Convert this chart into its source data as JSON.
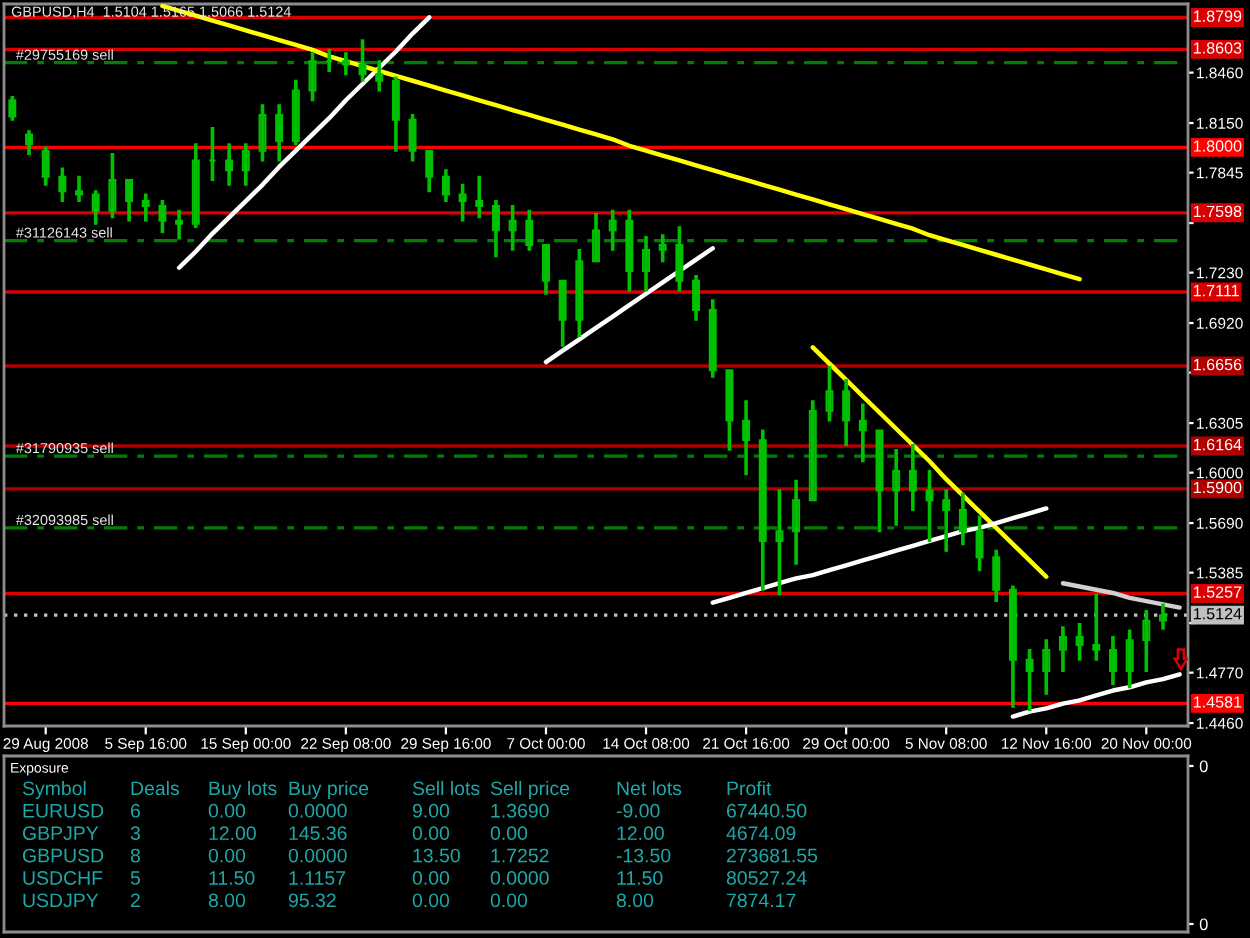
{
  "chart_data": [
    {
      "type": "candlestick",
      "title": "GBPUSD,H4  1.5104 1.5165 1.5066 1.5124",
      "color": "#00c000",
      "categories": [
        null,
        null,
        "29 Aug 2008",
        null,
        null,
        null,
        null,
        null,
        "5 Sep 16:00",
        null,
        null,
        null,
        null,
        null,
        "15 Sep 00:00",
        null,
        null,
        null,
        null,
        null,
        "22 Sep 08:00",
        null,
        null,
        null,
        null,
        null,
        "29 Sep 16:00",
        null,
        null,
        null,
        null,
        null,
        "7 Oct 00:00",
        null,
        null,
        null,
        null,
        null,
        "14 Oct 08:00",
        null,
        null,
        null,
        null,
        null,
        "21 Oct 16:00",
        null,
        null,
        null,
        null,
        null,
        "29 Oct 00:00",
        null,
        null,
        null,
        null,
        null,
        "5 Nov 08:00",
        null,
        null,
        null,
        null,
        null,
        "12 Nov 16:00",
        null,
        null,
        null,
        null,
        null,
        "20 Nov 00:00",
        null,
        null
      ],
      "ohlc": [
        [
          1.829,
          1.831,
          1.817,
          1.819
        ],
        [
          1.808,
          1.81,
          1.796,
          1.802
        ],
        [
          1.798,
          1.8,
          1.777,
          1.782
        ],
        [
          1.782,
          1.787,
          1.767,
          1.773
        ],
        [
          1.773,
          1.782,
          1.767,
          1.771
        ],
        [
          1.771,
          1.773,
          1.753,
          1.761
        ],
        [
          1.761,
          1.796,
          1.757,
          1.78
        ],
        [
          1.78,
          1.78,
          1.755,
          1.767
        ],
        [
          1.767,
          1.771,
          1.755,
          1.764
        ],
        [
          1.764,
          1.767,
          1.748,
          1.755
        ],
        [
          1.755,
          1.761,
          1.744,
          1.753
        ],
        [
          1.753,
          1.802,
          1.751,
          1.792
        ],
        [
          1.792,
          1.812,
          1.78,
          1.792
        ],
        [
          1.792,
          1.802,
          1.777,
          1.786
        ],
        [
          1.786,
          1.802,
          1.777,
          1.798
        ],
        [
          1.798,
          1.826,
          1.792,
          1.82
        ],
        [
          1.82,
          1.826,
          1.792,
          1.804
        ],
        [
          1.804,
          1.841,
          1.802,
          1.835
        ],
        [
          1.835,
          1.858,
          1.829,
          1.853
        ],
        [
          1.853,
          1.86,
          1.847,
          1.853
        ],
        [
          1.853,
          1.858,
          1.845,
          1.851
        ],
        [
          1.851,
          1.866,
          1.841,
          1.845
        ],
        [
          1.845,
          1.853,
          1.835,
          1.841
        ],
        [
          1.841,
          1.843,
          1.798,
          1.817
        ],
        [
          1.817,
          1.82,
          1.792,
          1.798
        ],
        [
          1.798,
          1.798,
          1.773,
          1.782
        ],
        [
          1.782,
          1.786,
          1.767,
          1.771
        ],
        [
          1.771,
          1.777,
          1.755,
          1.767
        ],
        [
          1.767,
          1.782,
          1.757,
          1.764
        ],
        [
          1.764,
          1.767,
          1.733,
          1.749
        ],
        [
          1.749,
          1.764,
          1.737,
          1.755
        ],
        [
          1.755,
          1.761,
          1.737,
          1.74
        ],
        [
          1.74,
          1.74,
          1.71,
          1.718
        ],
        [
          1.718,
          1.718,
          1.678,
          1.694
        ],
        [
          1.694,
          1.737,
          1.684,
          1.73
        ],
        [
          1.73,
          1.759,
          1.73,
          1.749
        ],
        [
          1.749,
          1.761,
          1.737,
          1.755
        ],
        [
          1.755,
          1.761,
          1.712,
          1.724
        ],
        [
          1.724,
          1.745,
          1.712,
          1.737
        ],
        [
          1.737,
          1.746,
          1.73,
          1.74
        ],
        [
          1.74,
          1.751,
          1.712,
          1.718
        ],
        [
          1.718,
          1.721,
          1.694,
          1.7
        ],
        [
          1.7,
          1.706,
          1.659,
          1.663
        ],
        [
          1.663,
          1.663,
          1.614,
          1.632
        ],
        [
          1.632,
          1.644,
          1.599,
          1.62
        ],
        [
          1.62,
          1.626,
          1.528,
          1.558
        ],
        [
          1.558,
          1.589,
          1.525,
          1.564
        ],
        [
          1.564,
          1.595,
          1.544,
          1.583
        ],
        [
          1.583,
          1.644,
          1.583,
          1.638
        ],
        [
          1.638,
          1.665,
          1.632,
          1.65
        ],
        [
          1.65,
          1.657,
          1.617,
          1.632
        ],
        [
          1.632,
          1.642,
          1.607,
          1.626
        ],
        [
          1.626,
          1.626,
          1.564,
          1.589
        ],
        [
          1.589,
          1.614,
          1.568,
          1.601
        ],
        [
          1.601,
          1.617,
          1.577,
          1.589
        ],
        [
          1.589,
          1.601,
          1.558,
          1.583
        ],
        [
          1.583,
          1.589,
          1.552,
          1.577
        ],
        [
          1.577,
          1.587,
          1.556,
          1.564
        ],
        [
          1.564,
          1.573,
          1.54,
          1.548
        ],
        [
          1.548,
          1.552,
          1.521,
          1.528
        ],
        [
          1.528,
          1.53,
          1.456,
          1.485
        ],
        [
          1.485,
          1.491,
          1.454,
          1.478
        ],
        [
          1.478,
          1.497,
          1.464,
          1.491
        ],
        [
          1.491,
          1.505,
          1.478,
          1.499
        ],
        [
          1.499,
          1.507,
          1.485,
          1.494
        ],
        [
          1.494,
          1.525,
          1.485,
          1.491
        ],
        [
          1.491,
          1.499,
          1.47,
          1.478
        ],
        [
          1.478,
          1.503,
          1.468,
          1.497
        ],
        [
          1.497,
          1.515,
          1.478,
          1.509
        ],
        [
          1.509,
          1.519,
          1.504,
          1.5124
        ],
        null
      ],
      "ylim": [
        1.4442,
        1.8882
      ],
      "yticks": [
        {
          "value": 1.846,
          "label": "1.8460"
        },
        {
          "value": 1.815,
          "label": "1.8150"
        },
        {
          "value": 1.7845,
          "label": "1.7845"
        },
        {
          "value": 1.7535,
          "label": null
        },
        {
          "value": 1.723,
          "label": "1.7230"
        },
        {
          "value": 1.692,
          "label": "1.6920"
        },
        {
          "value": 1.6615,
          "label": null
        },
        {
          "value": 1.6305,
          "label": "1.6305"
        },
        {
          "value": 1.6,
          "label": "1.6000"
        },
        {
          "value": 1.569,
          "label": "1.5690"
        },
        {
          "value": 1.5385,
          "label": "1.5385"
        },
        {
          "value": 1.5075,
          "label": null
        },
        {
          "value": 1.477,
          "label": "1.4770"
        },
        {
          "value": 1.446,
          "label": "1.4460"
        }
      ],
      "series": [
        {
          "type": "line",
          "color": "#ffffff",
          "values": [
            null,
            null,
            null,
            null,
            null,
            null,
            null,
            null,
            null,
            null,
            1.726,
            1.736,
            1.747,
            1.757,
            1.767,
            1.777,
            1.788,
            1.798,
            1.808,
            1.818,
            1.829,
            1.839,
            1.849,
            1.859,
            1.87,
            1.88,
            null,
            null,
            null,
            null,
            null,
            null,
            null,
            null,
            null,
            null,
            null,
            null,
            null,
            null,
            null,
            null,
            null,
            null,
            null,
            null,
            null,
            null,
            null,
            null,
            null,
            null,
            null,
            null,
            null,
            null,
            null,
            null,
            null,
            null,
            null,
            null,
            null,
            null,
            null,
            null,
            null,
            null,
            null,
            null,
            null
          ]
        },
        {
          "type": "line",
          "color": "#ffff00",
          "values": [
            null,
            null,
            null,
            null,
            null,
            null,
            null,
            null,
            null,
            1.887,
            1.884,
            1.881,
            1.878,
            1.875,
            1.872,
            1.869,
            1.866,
            1.863,
            1.86,
            1.856,
            1.853,
            1.85,
            1.847,
            1.844,
            1.841,
            1.838,
            1.835,
            1.832,
            1.829,
            1.826,
            1.823,
            1.82,
            1.817,
            1.814,
            1.811,
            1.808,
            1.805,
            1.801,
            1.798,
            1.795,
            1.792,
            1.789,
            1.786,
            1.783,
            1.78,
            1.777,
            1.774,
            1.771,
            1.768,
            1.765,
            1.762,
            1.759,
            1.756,
            1.753,
            1.75,
            1.746,
            1.743,
            1.74,
            1.737,
            1.734,
            1.731,
            1.728,
            1.725,
            1.722,
            1.719,
            null,
            null,
            null,
            null,
            null,
            null
          ]
        },
        {
          "type": "line",
          "color": "#ffffff",
          "values": [
            null,
            null,
            null,
            null,
            null,
            null,
            null,
            null,
            null,
            null,
            null,
            null,
            null,
            null,
            null,
            null,
            null,
            null,
            null,
            null,
            null,
            null,
            null,
            null,
            null,
            null,
            null,
            null,
            null,
            null,
            null,
            null,
            1.668,
            1.675,
            1.682,
            1.689,
            1.696,
            1.703,
            1.71,
            1.717,
            1.724,
            1.731,
            1.738,
            null,
            null,
            null,
            null,
            null,
            null,
            null,
            null,
            null,
            null,
            null,
            null,
            null,
            null,
            null,
            null,
            null,
            null,
            null,
            null,
            null,
            null,
            null,
            null,
            null,
            null,
            null,
            null
          ]
        },
        {
          "type": "line",
          "color": "#ffff00",
          "values": [
            null,
            null,
            null,
            null,
            null,
            null,
            null,
            null,
            null,
            null,
            null,
            null,
            null,
            null,
            null,
            null,
            null,
            null,
            null,
            null,
            null,
            null,
            null,
            null,
            null,
            null,
            null,
            null,
            null,
            null,
            null,
            null,
            null,
            null,
            null,
            null,
            null,
            null,
            null,
            null,
            null,
            null,
            null,
            null,
            null,
            null,
            null,
            null,
            1.677,
            1.667,
            1.657,
            1.647,
            1.637,
            1.627,
            1.617,
            1.607,
            1.596,
            1.586,
            1.576,
            1.566,
            1.556,
            1.546,
            1.536,
            null,
            null,
            null,
            null,
            null,
            null,
            null,
            null
          ]
        },
        {
          "type": "line",
          "color": "#ffffff",
          "values": [
            null,
            null,
            null,
            null,
            null,
            null,
            null,
            null,
            null,
            null,
            null,
            null,
            null,
            null,
            null,
            null,
            null,
            null,
            null,
            null,
            null,
            null,
            null,
            null,
            null,
            null,
            null,
            null,
            null,
            null,
            null,
            null,
            null,
            null,
            null,
            null,
            null,
            null,
            null,
            null,
            null,
            null,
            1.52,
            1.523,
            1.526,
            1.529,
            1.532,
            1.535,
            1.537,
            1.54,
            1.543,
            1.546,
            1.549,
            1.552,
            1.555,
            1.558,
            1.561,
            1.564,
            1.566,
            1.569,
            1.572,
            1.575,
            1.578,
            null,
            null,
            null,
            null,
            null,
            null,
            null,
            null
          ]
        },
        {
          "type": "line",
          "color": "#d0d0d0",
          "values": [
            null,
            null,
            null,
            null,
            null,
            null,
            null,
            null,
            null,
            null,
            null,
            null,
            null,
            null,
            null,
            null,
            null,
            null,
            null,
            null,
            null,
            null,
            null,
            null,
            null,
            null,
            null,
            null,
            null,
            null,
            null,
            null,
            null,
            null,
            null,
            null,
            null,
            null,
            null,
            null,
            null,
            null,
            null,
            null,
            null,
            null,
            null,
            null,
            null,
            null,
            null,
            null,
            null,
            null,
            null,
            null,
            null,
            null,
            null,
            null,
            null,
            null,
            null,
            1.532,
            1.53,
            1.528,
            1.526,
            1.523,
            1.521,
            1.519,
            1.517
          ]
        },
        {
          "type": "line",
          "color": "#ffffff",
          "values": [
            null,
            null,
            null,
            null,
            null,
            null,
            null,
            null,
            null,
            null,
            null,
            null,
            null,
            null,
            null,
            null,
            null,
            null,
            null,
            null,
            null,
            null,
            null,
            null,
            null,
            null,
            null,
            null,
            null,
            null,
            null,
            null,
            null,
            null,
            null,
            null,
            null,
            null,
            null,
            null,
            null,
            null,
            null,
            null,
            null,
            null,
            null,
            null,
            null,
            null,
            null,
            null,
            null,
            null,
            null,
            null,
            null,
            null,
            null,
            null,
            1.45,
            1.453,
            1.455,
            1.458,
            1.46,
            1.463,
            1.466,
            1.468,
            1.471,
            1.473,
            1.476
          ]
        }
      ],
      "ref_lines": [
        {
          "axis": "y",
          "value": 1.8799,
          "label": "1.8799",
          "color": "#d80000",
          "line_style": "solid"
        },
        {
          "axis": "y",
          "value": 1.8603,
          "label": "1.8603",
          "color": "#d80000",
          "line_style": "solid"
        },
        {
          "axis": "y",
          "value": 1.8,
          "label": "1.8000",
          "color": "#ff0000",
          "line_style": "solid"
        },
        {
          "axis": "y",
          "value": 1.7598,
          "label": "1.7598",
          "color": "#d80000",
          "line_style": "solid"
        },
        {
          "axis": "y",
          "value": 1.7111,
          "label": "1.7111",
          "color": "#d80000",
          "line_style": "solid"
        },
        {
          "axis": "y",
          "value": 1.6656,
          "label": "1.6656",
          "color": "#b00000",
          "line_style": "solid"
        },
        {
          "axis": "y",
          "value": 1.6164,
          "label": "1.6164",
          "color": "#b00000",
          "line_style": "solid"
        },
        {
          "axis": "y",
          "value": 1.59,
          "label": "1.5900",
          "color": "#b00000",
          "line_style": "solid"
        },
        {
          "axis": "y",
          "value": 1.5257,
          "label": "1.5257",
          "color": "#d80000",
          "line_style": "solid"
        },
        {
          "axis": "y",
          "value": 1.4581,
          "label": "1.4581",
          "color": "#ff0000",
          "line_style": "solid"
        },
        {
          "axis": "y",
          "value": 1.8521,
          "label": "#29755169 sell",
          "color": "#008000",
          "line_style": "dashed"
        },
        {
          "axis": "y",
          "value": 1.7427,
          "label": "#31126143 sell",
          "color": "#008000",
          "line_style": "dashed"
        },
        {
          "axis": "y",
          "value": 1.6102,
          "label": "#31790935 sell",
          "color": "#008000",
          "line_style": "dashed"
        },
        {
          "axis": "y",
          "value": 1.566,
          "label": "#32093985 sell",
          "color": "#008000",
          "line_style": "dashed"
        },
        {
          "axis": "y",
          "value": 1.5124,
          "label": "1.5124",
          "color": "#c0c0c0",
          "line_style": "dotted"
        }
      ]
    },
    {
      "type": "other",
      "title": "Exposure",
      "annotations": [
        "Symbol",
        "Deals",
        "Buy lots",
        "Buy price",
        "Sell lots",
        "Sell price",
        "Net lots",
        "Profit",
        "EURUSD",
        "6",
        "0.00",
        "0.0000",
        "9.00",
        "1.3690",
        "-9.00",
        "67440.50",
        "GBPJPY",
        "3",
        "12.00",
        "145.36",
        "0.00",
        "0.00",
        "12.00",
        "4674.09",
        "GBPUSD",
        "8",
        "0.00",
        "0.0000",
        "13.50",
        "1.7252",
        "-13.50",
        "273681.55",
        "USDCHF",
        "5",
        "11.50",
        "1.1157",
        "0.00",
        "0.0000",
        "11.50",
        "80527.24",
        "USDJPY",
        "2",
        "8.00",
        "95.32",
        "0.00",
        "0.00",
        "8.00",
        "7874.17"
      ],
      "y2_categories": [
        "0",
        "0"
      ]
    }
  ]
}
